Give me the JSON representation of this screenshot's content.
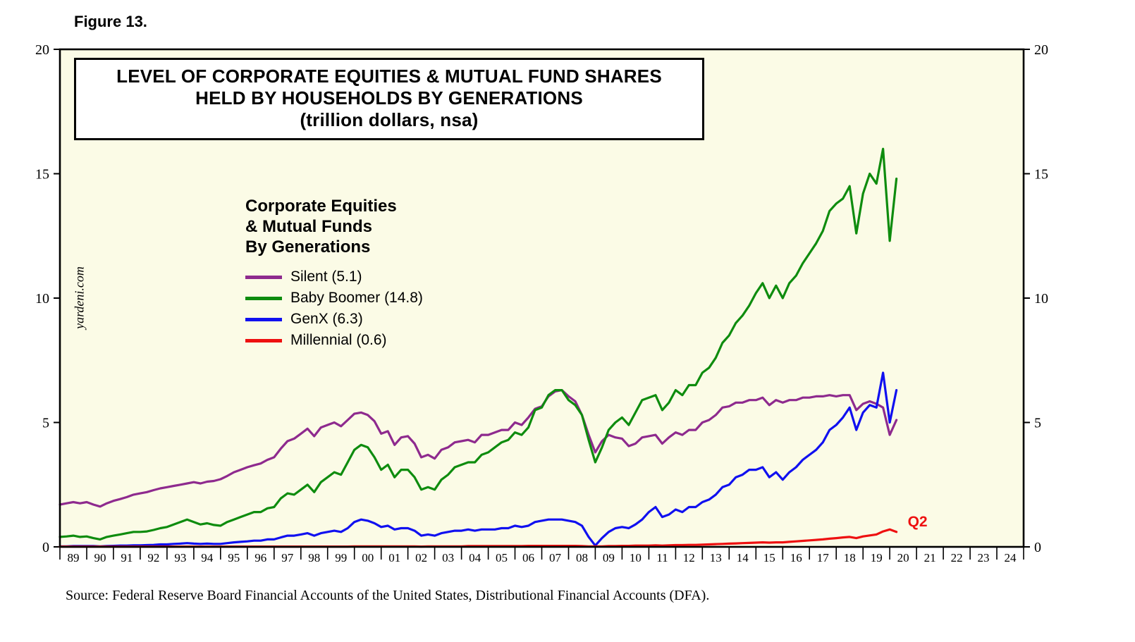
{
  "figure_label": "Figure 13.",
  "title_box": {
    "line1": "LEVEL OF CORPORATE EQUITIES & MUTUAL FUND SHARES",
    "line2": "HELD BY HOUSEHOLDS BY GENERATIONS",
    "line3": "(trillion dollars, nsa)"
  },
  "watermark": "yardeni.com",
  "legend": {
    "heading_lines": [
      "Corporate Equities",
      "& Mutual Funds",
      "By Generations"
    ]
  },
  "source": "Source: Federal Reserve Board Financial Accounts of the United States, Distributional Financial Accounts (DFA).",
  "chart_data": {
    "type": "line",
    "title": "LEVEL OF CORPORATE EQUITIES & MUTUAL FUND SHARES HELD BY HOUSEHOLDS BY GENERATIONS",
    "subtitle": "(trillion dollars, nsa)",
    "x_unit": "quarterly, decimal years",
    "x_start": 1989.0,
    "x_step": 0.25,
    "xlim": [
      1989,
      2025
    ],
    "ylim": [
      0,
      20
    ],
    "yticks": [
      0,
      5,
      10,
      15,
      20
    ],
    "grid": false,
    "legend_position": "inside-upper-left",
    "colors": {
      "plot_bg": "#FBFBE6",
      "axis": "#000000"
    },
    "annotation": {
      "text": "Q2",
      "color": "#EE1010"
    },
    "x_tick_years": [
      "89",
      "90",
      "91",
      "92",
      "93",
      "94",
      "95",
      "96",
      "97",
      "98",
      "99",
      "00",
      "01",
      "02",
      "03",
      "04",
      "05",
      "06",
      "07",
      "08",
      "09",
      "10",
      "11",
      "12",
      "13",
      "14",
      "15",
      "16",
      "17",
      "18",
      "19",
      "20",
      "21",
      "22",
      "23",
      "24"
    ],
    "series": [
      {
        "id": "silent",
        "name": "Silent (5.1)",
        "color": "#8E2A8E",
        "values": [
          1.7,
          1.75,
          1.8,
          1.75,
          1.8,
          1.7,
          1.62,
          1.75,
          1.85,
          1.92,
          2.0,
          2.1,
          2.15,
          2.2,
          2.28,
          2.35,
          2.4,
          2.45,
          2.5,
          2.55,
          2.6,
          2.55,
          2.62,
          2.65,
          2.72,
          2.85,
          3.0,
          3.1,
          3.2,
          3.28,
          3.35,
          3.5,
          3.6,
          3.95,
          4.25,
          4.35,
          4.55,
          4.75,
          4.45,
          4.8,
          4.9,
          5.0,
          4.85,
          5.1,
          5.35,
          5.4,
          5.3,
          5.05,
          4.55,
          4.65,
          4.1,
          4.4,
          4.45,
          4.15,
          3.6,
          3.7,
          3.55,
          3.9,
          4.0,
          4.2,
          4.25,
          4.3,
          4.2,
          4.5,
          4.5,
          4.6,
          4.7,
          4.7,
          5.0,
          4.9,
          5.2,
          5.55,
          5.65,
          6.05,
          6.25,
          6.3,
          6.05,
          5.85,
          5.3,
          4.5,
          3.8,
          4.25,
          4.5,
          4.4,
          4.35,
          4.05,
          4.15,
          4.4,
          4.45,
          4.5,
          4.15,
          4.4,
          4.6,
          4.5,
          4.7,
          4.7,
          5.0,
          5.1,
          5.3,
          5.6,
          5.65,
          5.8,
          5.8,
          5.9,
          5.9,
          6.0,
          5.7,
          5.9,
          5.8,
          5.9,
          5.9,
          6.0,
          6.0,
          6.05,
          6.05,
          6.1,
          6.05,
          6.1,
          6.1,
          5.5,
          5.75,
          5.85,
          5.75,
          5.6,
          4.5,
          5.1
        ]
      },
      {
        "id": "boomer",
        "name": "Baby Boomer (14.8)",
        "color": "#0E8C0E",
        "values": [
          0.4,
          0.42,
          0.45,
          0.4,
          0.42,
          0.35,
          0.3,
          0.4,
          0.45,
          0.5,
          0.55,
          0.6,
          0.6,
          0.62,
          0.68,
          0.75,
          0.8,
          0.9,
          1.0,
          1.1,
          1.0,
          0.9,
          0.95,
          0.88,
          0.85,
          1.0,
          1.1,
          1.2,
          1.3,
          1.4,
          1.4,
          1.55,
          1.6,
          1.95,
          2.15,
          2.1,
          2.3,
          2.5,
          2.2,
          2.6,
          2.8,
          3.0,
          2.9,
          3.4,
          3.9,
          4.1,
          4.0,
          3.6,
          3.1,
          3.3,
          2.8,
          3.1,
          3.1,
          2.8,
          2.3,
          2.4,
          2.3,
          2.7,
          2.9,
          3.2,
          3.3,
          3.4,
          3.4,
          3.7,
          3.8,
          4.0,
          4.2,
          4.3,
          4.6,
          4.5,
          4.8,
          5.5,
          5.6,
          6.1,
          6.3,
          6.3,
          5.9,
          5.7,
          5.3,
          4.3,
          3.4,
          4.0,
          4.7,
          5.0,
          5.2,
          4.9,
          5.4,
          5.9,
          6.0,
          6.1,
          5.5,
          5.8,
          6.3,
          6.1,
          6.5,
          6.5,
          7.0,
          7.2,
          7.6,
          8.2,
          8.5,
          9.0,
          9.3,
          9.7,
          10.2,
          10.6,
          10.0,
          10.5,
          10.0,
          10.6,
          10.9,
          11.4,
          11.8,
          12.2,
          12.7,
          13.5,
          13.8,
          14.0,
          14.5,
          12.6,
          14.2,
          15.0,
          14.6,
          16.0,
          12.3,
          14.8
        ]
      },
      {
        "id": "genx",
        "name": "GenX (6.3)",
        "color": "#1010F0",
        "values": [
          0.02,
          0.02,
          0.03,
          0.03,
          0.03,
          0.03,
          0.02,
          0.03,
          0.04,
          0.05,
          0.05,
          0.06,
          0.06,
          0.07,
          0.08,
          0.1,
          0.1,
          0.12,
          0.13,
          0.15,
          0.13,
          0.12,
          0.13,
          0.12,
          0.12,
          0.15,
          0.18,
          0.2,
          0.22,
          0.25,
          0.25,
          0.3,
          0.3,
          0.38,
          0.45,
          0.45,
          0.5,
          0.55,
          0.45,
          0.55,
          0.6,
          0.65,
          0.6,
          0.75,
          1.0,
          1.1,
          1.05,
          0.95,
          0.8,
          0.85,
          0.7,
          0.75,
          0.75,
          0.65,
          0.45,
          0.5,
          0.45,
          0.55,
          0.6,
          0.65,
          0.65,
          0.7,
          0.65,
          0.7,
          0.7,
          0.7,
          0.75,
          0.75,
          0.85,
          0.8,
          0.85,
          1.0,
          1.05,
          1.1,
          1.1,
          1.1,
          1.05,
          1.0,
          0.85,
          0.4,
          0.05,
          0.35,
          0.6,
          0.75,
          0.8,
          0.75,
          0.9,
          1.1,
          1.4,
          1.6,
          1.2,
          1.3,
          1.5,
          1.4,
          1.6,
          1.6,
          1.8,
          1.9,
          2.1,
          2.4,
          2.5,
          2.8,
          2.9,
          3.1,
          3.1,
          3.2,
          2.8,
          3.0,
          2.7,
          3.0,
          3.2,
          3.5,
          3.7,
          3.9,
          4.2,
          4.7,
          4.9,
          5.2,
          5.6,
          4.7,
          5.4,
          5.7,
          5.6,
          7.0,
          5.0,
          6.3
        ]
      },
      {
        "id": "millennial",
        "name": "Millennial (0.6)",
        "color": "#EE1010",
        "values": [
          0.01,
          0.01,
          0.01,
          0.01,
          0.01,
          0.01,
          0.01,
          0.01,
          0.01,
          0.01,
          0.01,
          0.01,
          0.01,
          0.01,
          0.01,
          0.01,
          0.01,
          0.01,
          0.01,
          0.01,
          0.01,
          0.01,
          0.01,
          0.01,
          0.01,
          0.01,
          0.01,
          0.01,
          0.01,
          0.01,
          0.01,
          0.01,
          0.01,
          0.01,
          0.01,
          0.01,
          0.01,
          0.01,
          0.01,
          0.01,
          0.01,
          0.01,
          0.01,
          0.01,
          0.02,
          0.02,
          0.02,
          0.02,
          0.02,
          0.02,
          0.02,
          0.02,
          0.02,
          0.02,
          0.01,
          0.02,
          0.02,
          0.02,
          0.02,
          0.02,
          0.02,
          0.03,
          0.03,
          0.03,
          0.03,
          0.03,
          0.03,
          0.03,
          0.03,
          0.03,
          0.04,
          0.04,
          0.04,
          0.04,
          0.04,
          0.04,
          0.04,
          0.04,
          0.03,
          0.02,
          0.02,
          0.02,
          0.03,
          0.03,
          0.04,
          0.04,
          0.05,
          0.05,
          0.05,
          0.06,
          0.05,
          0.06,
          0.07,
          0.07,
          0.08,
          0.08,
          0.09,
          0.1,
          0.11,
          0.12,
          0.13,
          0.14,
          0.15,
          0.16,
          0.17,
          0.18,
          0.17,
          0.18,
          0.18,
          0.2,
          0.22,
          0.24,
          0.26,
          0.28,
          0.3,
          0.33,
          0.35,
          0.38,
          0.4,
          0.35,
          0.42,
          0.46,
          0.5,
          0.62,
          0.7,
          0.6
        ]
      }
    ]
  }
}
